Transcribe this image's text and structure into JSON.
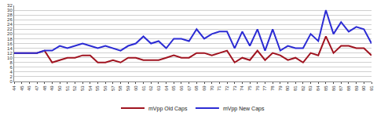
{
  "chart_data": {
    "type": "line",
    "categories": [
      "44",
      "45",
      "46",
      "47",
      "48",
      "49",
      "50",
      "51",
      "52",
      "53",
      "54",
      "55",
      "56",
      "57",
      "58",
      "59",
      "60",
      "61",
      "62",
      "63",
      "64",
      "65",
      "66",
      "67",
      "68",
      "69",
      "70",
      "71",
      "72",
      "73",
      "74",
      "75",
      "76",
      "77",
      "78",
      "79",
      "80",
      "81",
      "82",
      "83",
      "84",
      "85",
      "86",
      "87",
      "88",
      "89",
      "90",
      "91"
    ],
    "series": [
      {
        "name": "mVpp Old Caps",
        "color": "#a01420",
        "values": [
          12,
          12,
          12,
          12,
          13,
          8,
          9,
          10,
          10,
          11,
          11,
          8,
          8,
          9,
          8,
          10,
          10,
          9,
          9,
          9,
          10,
          11,
          10,
          10,
          12,
          12,
          11,
          12,
          13,
          8,
          10,
          9,
          13,
          9,
          12,
          11,
          9,
          10,
          8,
          12,
          11,
          19,
          12,
          15,
          15,
          14,
          14,
          11
        ]
      },
      {
        "name": "mVpp New Caps",
        "color": "#2c2cd4",
        "values": [
          12,
          12,
          12,
          12,
          13,
          13,
          15,
          14,
          15,
          16,
          15,
          14,
          15,
          14,
          13,
          15,
          16,
          19,
          16,
          17,
          14,
          18,
          18,
          17,
          22,
          18,
          20,
          21,
          21,
          14,
          21,
          15,
          22,
          13,
          22,
          13,
          15,
          14,
          14,
          20,
          17,
          30,
          20,
          25,
          21,
          23,
          22,
          16
        ]
      }
    ],
    "ylim": [
      0,
      32
    ],
    "yticks": [
      0,
      2,
      4,
      6,
      8,
      10,
      12,
      14,
      16,
      18,
      20,
      22,
      24,
      26,
      28,
      30,
      32
    ],
    "grid": true,
    "legend": "bottom"
  }
}
